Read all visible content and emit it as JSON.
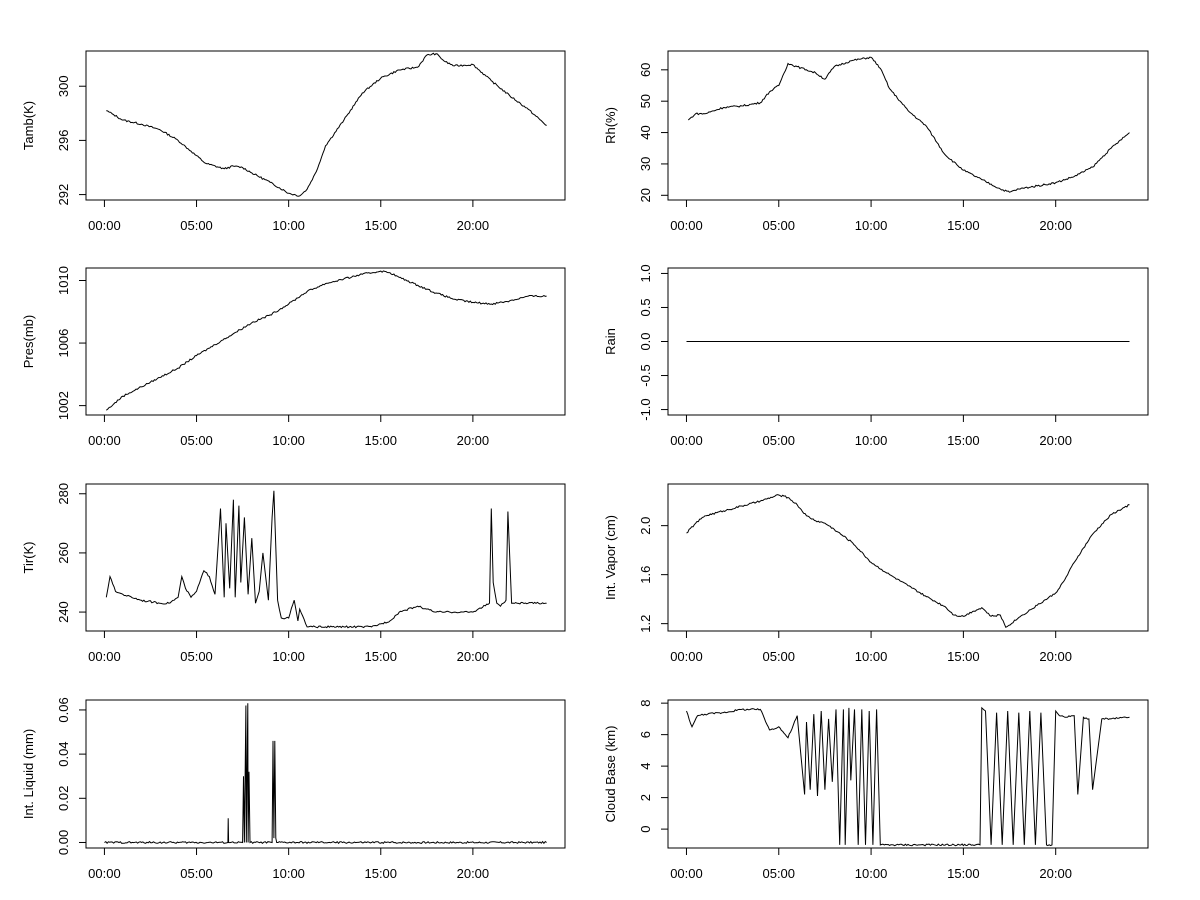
{
  "chart_data": [
    {
      "type": "line",
      "ylabel": "Tamb(K)",
      "x_ticks": [
        "00:00",
        "05:00",
        "10:00",
        "15:00",
        "20:00"
      ],
      "xlim": [
        -1,
        25
      ],
      "ylim": [
        291.6,
        302.6
      ],
      "y_ticks": [
        292,
        296,
        300
      ],
      "y_ticklabels": [
        "292",
        "296",
        "300"
      ],
      "series": [
        {
          "x": [
            0.1,
            0.5,
            1,
            2,
            3,
            4,
            4.7,
            5.5,
            6.5,
            7,
            7.5,
            8,
            9,
            10,
            10.6,
            11,
            11.5,
            12,
            13,
            14,
            15,
            16,
            17,
            17.5,
            18,
            18.5,
            19,
            20,
            21,
            22,
            23,
            24
          ],
          "y": [
            298.2,
            297.9,
            297.5,
            297.2,
            296.8,
            296,
            295.2,
            294.3,
            293.9,
            294.1,
            294,
            293.6,
            292.9,
            292.1,
            291.9,
            292.4,
            293.7,
            295.6,
            297.5,
            299.5,
            300.6,
            301.2,
            301.4,
            302.3,
            302.4,
            301.8,
            301.5,
            301.6,
            300.4,
            299.3,
            298.3,
            297.1
          ]
        }
      ]
    },
    {
      "type": "line",
      "ylabel": "Rh(%)",
      "x_ticks": [
        "00:00",
        "05:00",
        "10:00",
        "15:00",
        "20:00"
      ],
      "xlim": [
        -1,
        25
      ],
      "ylim": [
        18.5,
        66
      ],
      "y_ticks": [
        20,
        30,
        40,
        50,
        60
      ],
      "y_ticklabels": [
        "20",
        "30",
        "40",
        "50",
        "60"
      ],
      "series": [
        {
          "x": [
            0.1,
            0.5,
            1,
            2,
            3,
            4,
            4.5,
            5,
            5.5,
            6,
            6.5,
            7,
            7.5,
            8,
            9,
            10,
            10.5,
            11,
            12,
            13,
            14,
            15,
            16,
            17,
            17.5,
            18,
            19,
            20,
            21,
            22,
            23,
            24
          ],
          "y": [
            44,
            46,
            46,
            48,
            48.5,
            49.5,
            53,
            55,
            62,
            61,
            60,
            59,
            57,
            61,
            63,
            64,
            60.5,
            54,
            47,
            42,
            33,
            28,
            25,
            22,
            21,
            22,
            23,
            24,
            26,
            29,
            35,
            40
          ]
        }
      ]
    },
    {
      "type": "line",
      "ylabel": "Pres(mb)",
      "x_ticks": [
        "00:00",
        "05:00",
        "10:00",
        "15:00",
        "20:00"
      ],
      "xlim": [
        -1,
        25
      ],
      "ylim": [
        1001.4,
        1010.8
      ],
      "y_ticks": [
        1002,
        1006,
        1010
      ],
      "y_ticklabels": [
        "1002",
        "1006",
        "1010"
      ],
      "series": [
        {
          "x": [
            0.1,
            0.5,
            1,
            2,
            3,
            4,
            5,
            6,
            7,
            8,
            9,
            10,
            11,
            12,
            13,
            14,
            15,
            15.5,
            16,
            17,
            18,
            19,
            20,
            21,
            22,
            23,
            24
          ],
          "y": [
            1001.7,
            1002.1,
            1002.6,
            1003.2,
            1003.8,
            1004.4,
            1005.2,
            1005.9,
            1006.6,
            1007.3,
            1007.8,
            1008.5,
            1009.3,
            1009.8,
            1010.1,
            1010.4,
            1010.6,
            1010.5,
            1010.2,
            1009.7,
            1009.2,
            1008.8,
            1008.6,
            1008.5,
            1008.7,
            1009.0,
            1009.0
          ]
        }
      ]
    },
    {
      "type": "line",
      "ylabel": "Rain",
      "x_ticks": [
        "00:00",
        "05:00",
        "10:00",
        "15:00",
        "20:00"
      ],
      "xlim": [
        -1,
        25
      ],
      "ylim": [
        -1.08,
        1.08
      ],
      "y_ticks": [
        -1.0,
        -0.5,
        0.0,
        0.5,
        1.0
      ],
      "y_ticklabels": [
        "-1.0",
        "-0.5",
        "0.0",
        "0.5",
        "1.0"
      ],
      "series": [
        {
          "x": [
            0,
            24
          ],
          "y": [
            0,
            0
          ]
        }
      ]
    },
    {
      "type": "line",
      "ylabel": "Tir(K)",
      "x_ticks": [
        "00:00",
        "05:00",
        "10:00",
        "15:00",
        "20:00"
      ],
      "xlim": [
        -1,
        25
      ],
      "ylim": [
        233.6,
        283.3
      ],
      "y_ticks": [
        240,
        260,
        280
      ],
      "y_ticklabels": [
        "240",
        "260",
        "280"
      ],
      "series": [
        {
          "x": [
            0.1,
            0.3,
            0.6,
            1,
            2,
            3,
            3.5,
            4,
            4.2,
            4.4,
            4.7,
            5,
            5.4,
            5.7,
            6,
            6.3,
            6.5,
            6.6,
            6.8,
            7,
            7.1,
            7.3,
            7.4,
            7.6,
            7.8,
            8,
            8.2,
            8.4,
            8.6,
            8.9,
            9.1,
            9.2,
            9.4,
            9.6,
            10,
            10.3,
            10.5,
            10.6,
            11,
            12,
            13,
            14,
            14.5,
            15,
            15.5,
            16,
            17,
            17.5,
            18,
            19,
            20,
            20.9,
            21,
            21.1,
            21.3,
            21.5,
            21.8,
            21.9,
            22.1,
            23,
            24
          ],
          "y": [
            245,
            252,
            247,
            246,
            244,
            243,
            243,
            245,
            252,
            248,
            245,
            247,
            254,
            252,
            246,
            275,
            245,
            270,
            248,
            278,
            245,
            276,
            250,
            272,
            246,
            265,
            243,
            247,
            260,
            244,
            272,
            281,
            244,
            238,
            238,
            244,
            237,
            241,
            235,
            235,
            235,
            235,
            235,
            236,
            237,
            240,
            242,
            241,
            240,
            240,
            240,
            243,
            275,
            250,
            243,
            242,
            244,
            274,
            243,
            243,
            243
          ]
        }
      ]
    },
    {
      "type": "line",
      "ylabel": "Int. Vapor (cm)",
      "x_ticks": [
        "00:00",
        "05:00",
        "10:00",
        "15:00",
        "20:00"
      ],
      "xlim": [
        -1,
        25
      ],
      "ylim": [
        1.14,
        2.34
      ],
      "y_ticks": [
        1.2,
        1.6,
        2.0
      ],
      "y_ticklabels": [
        "1.2",
        "1.6",
        "2.0"
      ],
      "series": [
        {
          "x": [
            0,
            0.5,
            1,
            2,
            3,
            4,
            5,
            5.5,
            6,
            6.5,
            7,
            7.5,
            8,
            9,
            10,
            11,
            12,
            13,
            14,
            14.5,
            15,
            15.5,
            16,
            16.5,
            17,
            17.3,
            18,
            19,
            20,
            20.5,
            21,
            22,
            23,
            24
          ],
          "y": [
            1.94,
            2.02,
            2.08,
            2.12,
            2.16,
            2.2,
            2.25,
            2.23,
            2.17,
            2.08,
            2.04,
            2.02,
            1.97,
            1.86,
            1.7,
            1.6,
            1.51,
            1.42,
            1.34,
            1.27,
            1.26,
            1.3,
            1.33,
            1.26,
            1.27,
            1.17,
            1.25,
            1.35,
            1.45,
            1.56,
            1.7,
            1.93,
            2.09,
            2.17
          ]
        }
      ]
    },
    {
      "type": "line",
      "ylabel": "Int. Liquid (mm)",
      "x_ticks": [
        "00:00",
        "05:00",
        "10:00",
        "15:00",
        "20:00"
      ],
      "xlim": [
        -1,
        25
      ],
      "ylim": [
        -0.0025,
        0.0645
      ],
      "y_ticks": [
        0.0,
        0.02,
        0.04,
        0.06
      ],
      "y_ticklabels": [
        "0.00",
        "0.02",
        "0.04",
        "0.06"
      ],
      "series": [
        {
          "x": [
            0,
            6.7,
            6.72,
            6.74,
            7.5,
            7.55,
            7.6,
            7.68,
            7.7,
            7.78,
            7.8,
            7.85,
            7.9,
            9.1,
            9.15,
            9.2,
            9.25,
            9.3,
            9.35,
            24
          ],
          "y": [
            0,
            0,
            0.011,
            0,
            0,
            0.03,
            0,
            0.062,
            0,
            0.063,
            0,
            0.032,
            0,
            0,
            0.046,
            0.002,
            0.046,
            0.002,
            0,
            0
          ]
        }
      ]
    },
    {
      "type": "line",
      "ylabel": "Cloud Base (km)",
      "x_ticks": [
        "00:00",
        "05:00",
        "10:00",
        "15:00",
        "20:00"
      ],
      "xlim": [
        -1,
        25
      ],
      "ylim": [
        -1.2,
        8.2
      ],
      "y_ticks": [
        0,
        2,
        4,
        6,
        8
      ],
      "y_ticklabels": [
        "0",
        "2",
        "4",
        "6",
        "8"
      ],
      "series": [
        {
          "x": [
            0,
            0.3,
            0.6,
            1,
            2,
            3,
            4,
            4.5,
            5,
            5.5,
            6,
            6.4,
            6.5,
            6.7,
            6.9,
            7.1,
            7.3,
            7.5,
            7.7,
            7.9,
            8.1,
            8.3,
            8.5,
            8.6,
            8.8,
            8.9,
            9.1,
            9.3,
            9.5,
            9.7,
            9.9,
            10.1,
            10.3,
            10.5,
            15.5,
            15.9,
            16,
            16.2,
            16.5,
            16.8,
            17.1,
            17.4,
            17.7,
            18,
            18.3,
            18.6,
            18.9,
            19.2,
            19.5,
            19.8,
            20,
            20.2,
            20.5,
            21,
            21.2,
            21.5,
            21.8,
            22,
            22.5,
            23,
            24
          ],
          "y": [
            7.5,
            6.5,
            7.2,
            7.3,
            7.4,
            7.6,
            7.6,
            6.3,
            6.5,
            5.8,
            7.2,
            2.2,
            6.8,
            2.5,
            7.3,
            2.1,
            7.5,
            2.5,
            7.0,
            3.0,
            7.6,
            -1,
            7.6,
            -1,
            7.7,
            3.1,
            7.6,
            -1,
            7.6,
            -1,
            7.5,
            -1,
            7.6,
            -1,
            -1,
            -1,
            7.7,
            7.5,
            -1,
            7.4,
            -1,
            7.5,
            -1,
            7.4,
            -1,
            7.5,
            -1,
            7.4,
            -1,
            -1,
            7.5,
            7.2,
            7.1,
            7.2,
            2.2,
            7.1,
            7.0,
            2.5,
            7.0,
            7.0,
            7.1
          ]
        }
      ]
    }
  ]
}
